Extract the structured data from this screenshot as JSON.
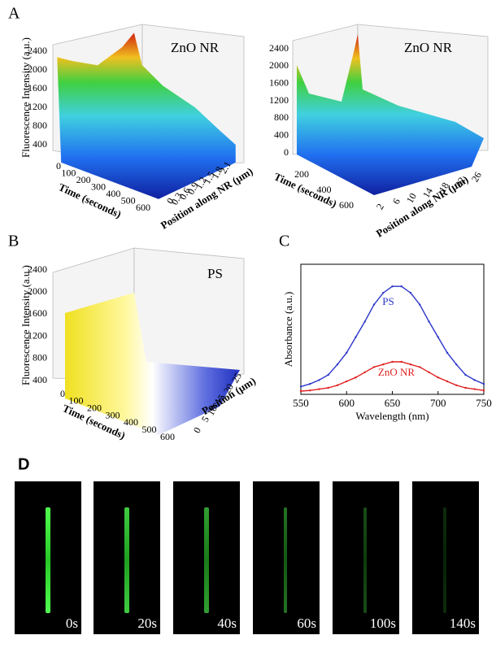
{
  "panels": {
    "A": {
      "label": "A",
      "left": {
        "title": "ZnO NR",
        "z_label": "Fluorescence Intensity (a.u.)",
        "z_ticks": [
          400,
          800,
          1200,
          1600,
          2000,
          2400
        ],
        "time_label": "Time (seconds)",
        "time_ticks": [
          0,
          100,
          200,
          300,
          400,
          500,
          600
        ],
        "position_label": "Position along NR (µm)",
        "position_ticks": [
          0,
          0.3,
          0.6,
          0.9,
          1.2,
          1.5,
          1.8,
          2.1
        ]
      },
      "right": {
        "title": "ZnO NR",
        "z_ticks": [
          0,
          400,
          800,
          1200,
          1600,
          2000,
          2400
        ],
        "time_label": "Time (seconds)",
        "time_ticks": [
          200,
          400,
          600
        ],
        "position_label": "Position along NR (µm)",
        "position_ticks": [
          2,
          6,
          10,
          14,
          18,
          22,
          26
        ]
      }
    },
    "B": {
      "label": "B",
      "title": "PS",
      "z_label": "Fluorescence Intensity (a.u.)",
      "z_ticks": [
        400,
        800,
        1200,
        1600,
        2000,
        2400
      ],
      "time_label": "Time (seconds)",
      "time_ticks": [
        0,
        100,
        200,
        300,
        400,
        500,
        600
      ],
      "position_label": "Position (µm)",
      "position_ticks": [
        0,
        5,
        10,
        15,
        20,
        25
      ]
    },
    "C": {
      "label": "C"
    },
    "D": {
      "label": "D",
      "frames": [
        "0s",
        "20s",
        "40s",
        "60s",
        "100s",
        "140s"
      ]
    }
  },
  "chart_data": {
    "type": "line",
    "x_label": "Wavelength (nm)",
    "y_label": "Absorbance (a.u.)",
    "x": [
      550,
      560,
      570,
      580,
      590,
      600,
      610,
      620,
      630,
      640,
      650,
      660,
      670,
      680,
      690,
      700,
      710,
      720,
      730,
      740,
      750
    ],
    "series": [
      {
        "name": "PS",
        "color": "#2b35c8",
        "values": [
          0.06,
          0.08,
          0.11,
          0.15,
          0.23,
          0.32,
          0.44,
          0.56,
          0.69,
          0.78,
          0.83,
          0.83,
          0.78,
          0.69,
          0.56,
          0.44,
          0.32,
          0.23,
          0.15,
          0.11,
          0.08
        ]
      },
      {
        "name": "ZnO NR",
        "color": "#e02020",
        "values": [
          0.025,
          0.03,
          0.04,
          0.05,
          0.07,
          0.1,
          0.13,
          0.17,
          0.21,
          0.23,
          0.25,
          0.25,
          0.23,
          0.21,
          0.17,
          0.13,
          0.1,
          0.07,
          0.05,
          0.04,
          0.03
        ]
      }
    ],
    "xlim": [
      550,
      750
    ],
    "xticks": [
      550,
      600,
      650,
      700,
      750
    ],
    "ylim": [
      0,
      1
    ]
  }
}
